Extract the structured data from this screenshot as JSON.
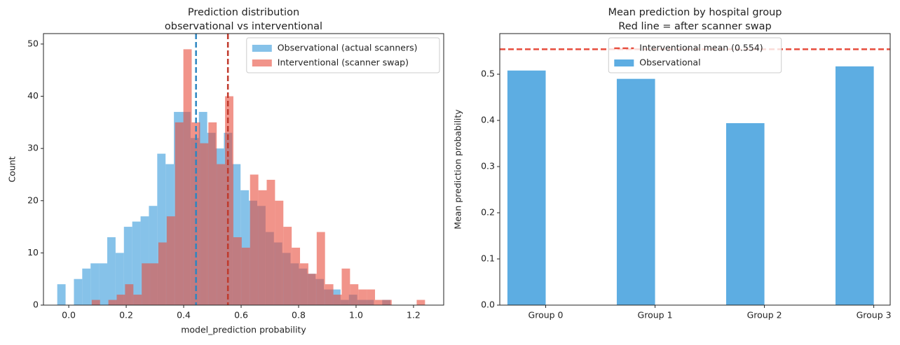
{
  "chart_data": [
    {
      "type": "histogram",
      "title": [
        "Prediction distribution",
        "observational vs interventional"
      ],
      "x_label": "model_prediction probability",
      "y_label": "Count",
      "xlim": [
        -0.088,
        1.305
      ],
      "ylim": [
        0,
        52
      ],
      "xticks": [
        {
          "value": 0,
          "label": "0.0"
        },
        0.2,
        0.4,
        0.6,
        0.8,
        {
          "value": 1,
          "label": "1.0"
        },
        1.2
      ],
      "yticks": [
        0,
        10,
        20,
        30,
        40,
        50
      ],
      "legend": "upper right",
      "series": [
        {
          "name": "Observational (actual scanners)",
          "color": "#5dade2",
          "opacity": 0.75,
          "mean": 0.443,
          "mean_color": "#2e86c1",
          "bins": [
            -0.04,
            -0.011,
            0.018,
            0.047,
            0.076,
            0.105,
            0.134,
            0.163,
            0.192,
            0.221,
            0.25,
            0.279,
            0.308,
            0.337,
            0.366,
            0.395,
            0.424,
            0.453,
            0.482,
            0.511,
            0.54,
            0.569,
            0.598,
            0.627,
            0.656,
            0.685,
            0.714,
            0.743,
            0.772,
            0.801,
            0.83,
            0.859,
            0.888,
            0.917,
            0.946,
            0.975,
            1.004,
            1.033,
            1.062,
            1.091,
            1.12
          ],
          "values": [
            4,
            0,
            5,
            7,
            8,
            8,
            13,
            10,
            15,
            16,
            17,
            19,
            29,
            27,
            37,
            37,
            32,
            37,
            33,
            30,
            33,
            27,
            22,
            20,
            19,
            14,
            12,
            10,
            8,
            7,
            6,
            5,
            3,
            3,
            1,
            2,
            1,
            1,
            0,
            1
          ]
        },
        {
          "name": "Interventional (scanner swap)",
          "color": "#e74c3c",
          "opacity": 0.6,
          "mean": 0.554,
          "mean_color": "#c0392b",
          "bins": [
            0.08,
            0.109,
            0.138,
            0.167,
            0.196,
            0.225,
            0.254,
            0.283,
            0.312,
            0.341,
            0.37,
            0.399,
            0.428,
            0.457,
            0.486,
            0.515,
            0.544,
            0.573,
            0.602,
            0.631,
            0.66,
            0.689,
            0.718,
            0.747,
            0.776,
            0.805,
            0.834,
            0.863,
            0.892,
            0.921,
            0.95,
            0.979,
            1.008,
            1.037,
            1.066,
            1.095,
            1.124,
            1.153,
            1.182,
            1.211,
            1.24
          ],
          "values": [
            1,
            0,
            1,
            2,
            4,
            2,
            8,
            8,
            12,
            17,
            35,
            49,
            35,
            31,
            35,
            27,
            40,
            13,
            11,
            25,
            22,
            24,
            20,
            15,
            11,
            8,
            6,
            14,
            4,
            2,
            7,
            4,
            3,
            3,
            1,
            1,
            0,
            0,
            0,
            1
          ]
        }
      ]
    },
    {
      "type": "bar",
      "title": [
        "Mean prediction by hospital group",
        "Red line = after scanner swap"
      ],
      "y_label": "Mean prediction probability",
      "categories": [
        "Group 0",
        "Group 1",
        "Group 2",
        "Group 3"
      ],
      "ylim": [
        0,
        0.588
      ],
      "yticks": [
        {
          "value": 0,
          "label": "0.0"
        },
        0.1,
        0.2,
        0.3,
        0.4,
        0.5
      ],
      "legend": "upper center",
      "hline": {
        "name": "Interventional mean (0.554)",
        "value": 0.554,
        "color": "#e74c3c"
      },
      "series": [
        {
          "name": "Observational",
          "color": "#5dade2",
          "values": [
            0.508,
            0.49,
            0.394,
            0.517
          ]
        }
      ]
    }
  ]
}
